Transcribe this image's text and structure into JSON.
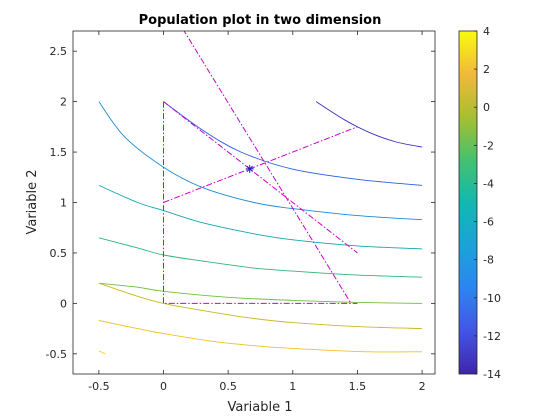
{
  "chart_data": {
    "type": "line",
    "title": "Population plot in two dimension",
    "xlabel": "Variable  1",
    "ylabel": "Variable  2",
    "xlim": [
      -0.7,
      2.1
    ],
    "ylim": [
      -0.7,
      2.7
    ],
    "xticks": [
      -0.5,
      0,
      0.5,
      1,
      1.5,
      2
    ],
    "xtick_labels": [
      "-0.5",
      "0",
      "0.5",
      "1",
      "1.5",
      "2"
    ],
    "yticks": [
      -0.5,
      0,
      0.5,
      1,
      1.5,
      2,
      2.5
    ],
    "ytick_labels": [
      "-0.5",
      "0",
      "0.5",
      "1",
      "1.5",
      "2",
      "2.5"
    ],
    "grid": false,
    "colorbar": {
      "min": -14,
      "max": 4,
      "ticks": [
        -14,
        -12,
        -10,
        -8,
        -6,
        -4,
        -2,
        0,
        2,
        4
      ],
      "tick_labels": [
        "-14",
        "-12",
        "-10",
        "-8",
        "-6",
        "-4",
        "-2",
        "0",
        "2",
        "4"
      ]
    },
    "contours": [
      {
        "level": -13,
        "color": "#3a2fbd",
        "points": [
          [
            1.18,
            2.0
          ],
          [
            1.4,
            1.82
          ],
          [
            1.6,
            1.69
          ],
          [
            1.8,
            1.6
          ],
          [
            2.0,
            1.55
          ]
        ]
      },
      {
        "level": -10,
        "color": "#2b5de0",
        "points": [
          [
            0.0,
            2.0
          ],
          [
            0.3,
            1.72
          ],
          [
            0.6,
            1.5
          ],
          [
            1.0,
            1.33
          ],
          [
            1.5,
            1.23
          ],
          [
            2.0,
            1.17
          ]
        ]
      },
      {
        "level": -7,
        "color": "#1f8ad6",
        "points": [
          [
            -0.5,
            2.0
          ],
          [
            -0.3,
            1.65
          ],
          [
            0.0,
            1.35
          ],
          [
            0.3,
            1.15
          ],
          [
            0.7,
            1.0
          ],
          [
            1.0,
            0.94
          ],
          [
            1.5,
            0.87
          ],
          [
            2.0,
            0.83
          ]
        ]
      },
      {
        "level": -5,
        "color": "#12a6b0",
        "points": [
          [
            -0.5,
            1.17
          ],
          [
            -0.2,
            1.0
          ],
          [
            0.0,
            0.92
          ],
          [
            0.3,
            0.8
          ],
          [
            0.7,
            0.69
          ],
          [
            1.0,
            0.63
          ],
          [
            1.5,
            0.57
          ],
          [
            2.0,
            0.54
          ]
        ]
      },
      {
        "level": -3,
        "color": "#2db67a",
        "points": [
          [
            -0.5,
            0.65
          ],
          [
            -0.2,
            0.55
          ],
          [
            0.0,
            0.48
          ],
          [
            0.3,
            0.42
          ],
          [
            0.7,
            0.35
          ],
          [
            1.0,
            0.32
          ],
          [
            1.5,
            0.28
          ],
          [
            2.0,
            0.26
          ]
        ]
      },
      {
        "level": -1,
        "color": "#72be3c",
        "points": [
          [
            -0.5,
            0.2
          ],
          [
            -0.2,
            0.16
          ],
          [
            0.0,
            0.12
          ],
          [
            0.5,
            0.06
          ],
          [
            1.0,
            0.03
          ],
          [
            1.5,
            0.01
          ],
          [
            2.0,
            0.0
          ]
        ]
      },
      {
        "level": 1,
        "color": "#cdb71f",
        "points": [
          [
            -0.5,
            0.2
          ],
          [
            -0.2,
            0.07
          ],
          [
            0.0,
            0.0
          ],
          [
            0.3,
            -0.07
          ],
          [
            0.7,
            -0.15
          ],
          [
            1.0,
            -0.19
          ],
          [
            1.5,
            -0.23
          ],
          [
            2.0,
            -0.25
          ]
        ]
      },
      {
        "level": 3,
        "color": "#f1c11e",
        "points": [
          [
            -0.5,
            -0.17
          ],
          [
            -0.2,
            -0.25
          ],
          [
            0.0,
            -0.3
          ],
          [
            0.4,
            -0.38
          ],
          [
            0.8,
            -0.43
          ],
          [
            1.2,
            -0.46
          ],
          [
            1.6,
            -0.48
          ],
          [
            2.0,
            -0.48
          ]
        ]
      },
      {
        "level": 4,
        "color": "#f7d81c",
        "points": [
          [
            -0.5,
            -0.47
          ],
          [
            -0.45,
            -0.5
          ]
        ]
      }
    ],
    "constraint_lines": [
      {
        "color": "#cc00cc",
        "points": [
          [
            0.0,
            2.0
          ],
          [
            0.0,
            0.0
          ],
          [
            1.5,
            0.0
          ]
        ]
      },
      {
        "color": "#cc00cc",
        "points": [
          [
            0.0,
            2.0
          ],
          [
            1.5,
            0.5
          ]
        ]
      },
      {
        "color": "#cc00cc",
        "points": [
          [
            0.0,
            1.0
          ],
          [
            1.5,
            1.75
          ]
        ]
      },
      {
        "color": "#cc00cc",
        "points": [
          [
            0.15,
            2.72
          ],
          [
            1.45,
            0.0
          ]
        ]
      }
    ],
    "points": [
      {
        "x": 0.667,
        "y": 1.333,
        "marker": "asterisk",
        "color": "#1f1fbf"
      }
    ]
  }
}
